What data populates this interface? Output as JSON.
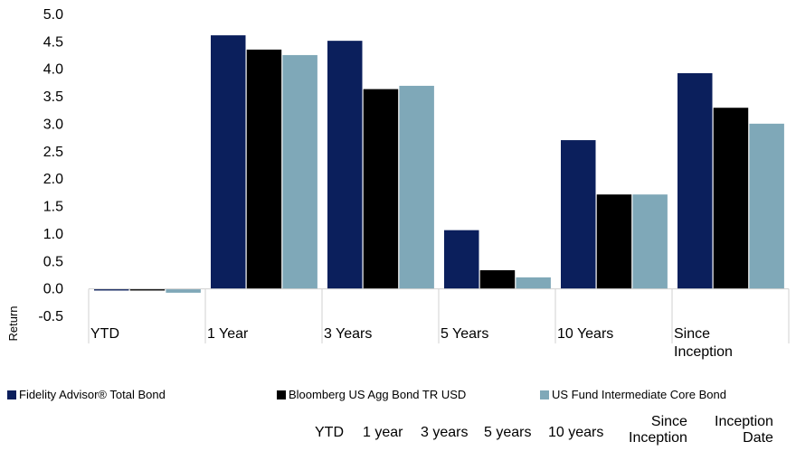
{
  "chart_data": {
    "type": "bar",
    "categories": [
      "YTD",
      "1 Year",
      "3 Years",
      "5 Years",
      "10 Years",
      "Since\nInception"
    ],
    "series": [
      {
        "name": "Fidelity Advisor® Total Bond",
        "color": "#0b1f5c",
        "values": [
          -0.03,
          4.62,
          4.52,
          1.07,
          2.71,
          3.93
        ]
      },
      {
        "name": "Bloomberg US Agg Bond TR USD",
        "color": "#000000",
        "values": [
          -0.03,
          4.36,
          3.64,
          0.34,
          1.72,
          3.3
        ]
      },
      {
        "name": "US Fund Intermediate Core Bond",
        "color": "#7fa8b8",
        "values": [
          -0.07,
          4.26,
          3.7,
          0.21,
          1.72,
          3.01
        ]
      }
    ],
    "ylabel": "Return",
    "xlabel": "",
    "ylim": [
      -0.5,
      5.0
    ],
    "yticks": [
      "5.0",
      "4.5",
      "4.0",
      "3.5",
      "3.0",
      "2.5",
      "2.0",
      "1.5",
      "1.0",
      "0.5",
      "0.0",
      "-0.5"
    ],
    "gridlines": false
  },
  "summary_header": {
    "ytd": "YTD",
    "one_year": "1 year",
    "three_years": "3 years",
    "five_years": "5 years",
    "ten_years": "10 years",
    "since_inception": "Since\nInception",
    "inception_date": "Inception\nDate"
  }
}
